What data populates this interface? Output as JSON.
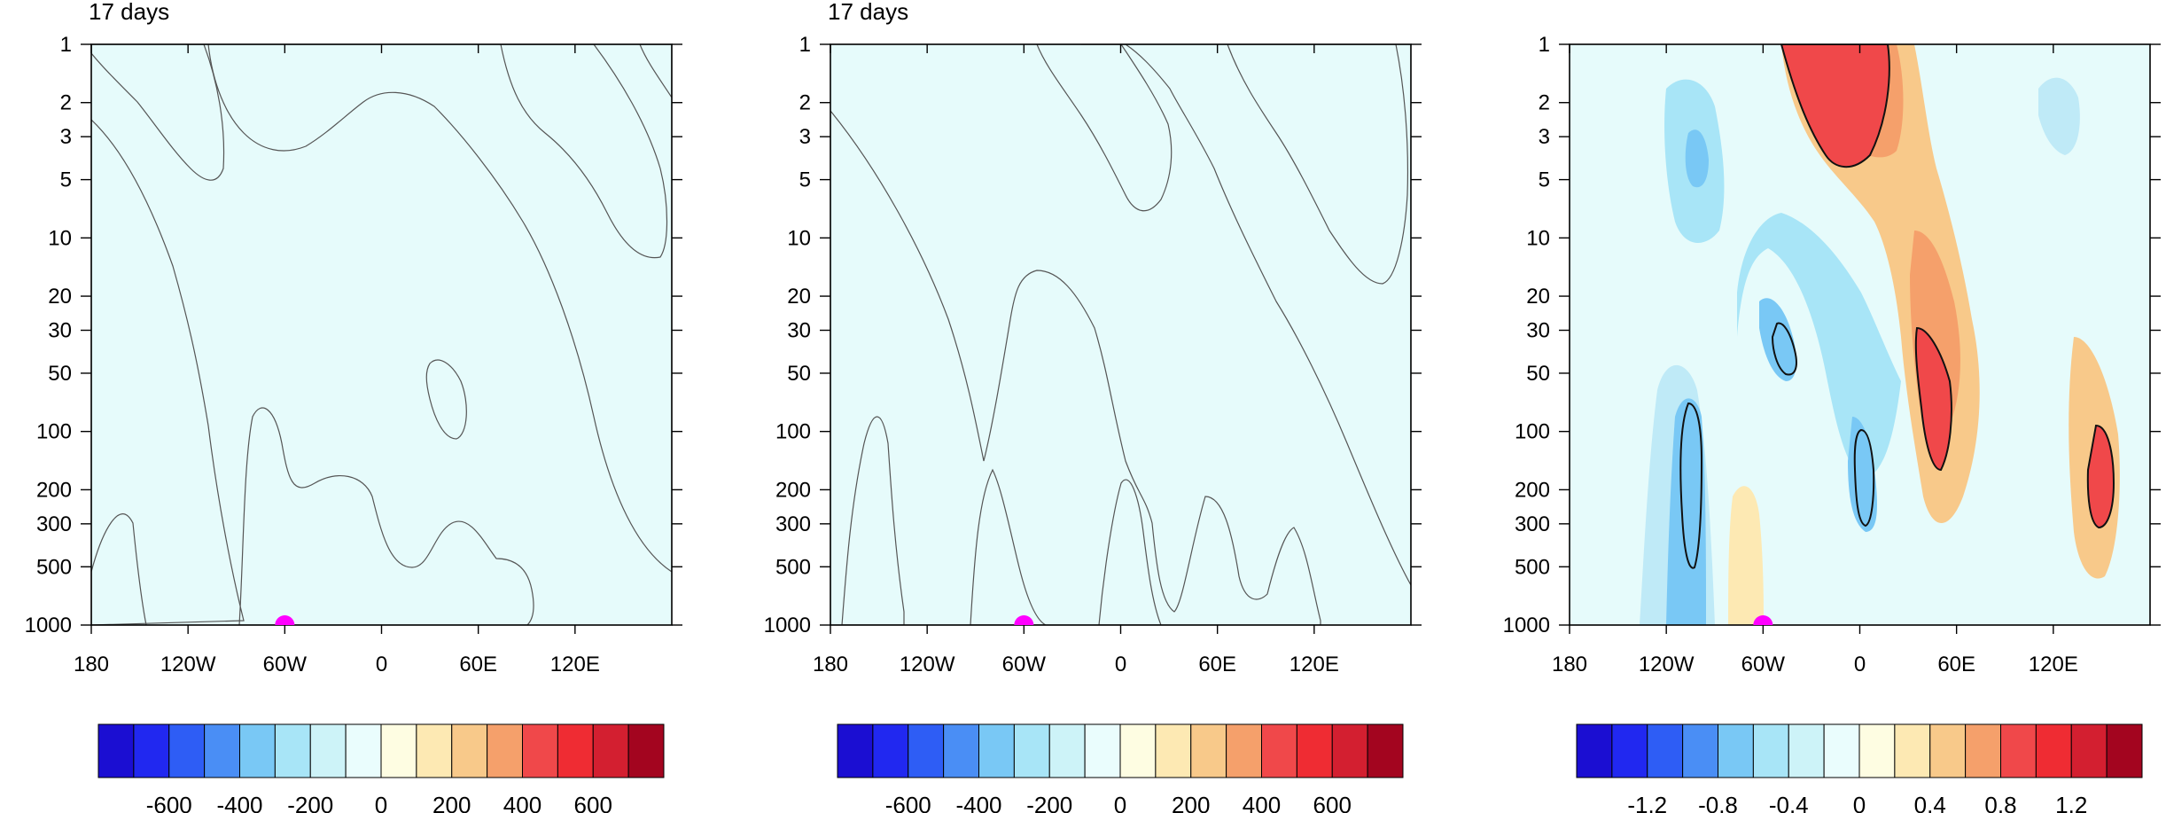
{
  "chart_data": [
    {
      "type": "heatmap",
      "title": "17 days",
      "x_ticks": [
        "180",
        "120W",
        "60W",
        "0",
        "60E",
        "120E"
      ],
      "y_ticks": [
        "1",
        "2",
        "3",
        "5",
        "10",
        "20",
        "30",
        "50",
        "100",
        "200",
        "300",
        "500",
        "1000"
      ],
      "y_scale": "log",
      "y_range": [
        1000,
        1
      ],
      "x_range": [
        "180",
        "180"
      ],
      "marker": {
        "x": "60W",
        "y": 1000,
        "color": "#ff00ff"
      },
      "colorbar": {
        "labels": [
          "-600",
          "-400",
          "-200",
          "0",
          "200",
          "400",
          "600"
        ],
        "colors": [
          "#1b0ed2",
          "#2128f0",
          "#2e5df5",
          "#4a8ef5",
          "#79c8f5",
          "#a8e5f7",
          "#cdf3f8",
          "#eafdfd",
          "#fefde2",
          "#fde9b3",
          "#f8c98a",
          "#f5a06b",
          "#f0484a",
          "#ef2c33",
          "#d31f30",
          "#a3051f"
        ]
      }
    },
    {
      "type": "heatmap",
      "title": "17 days",
      "x_ticks": [
        "180",
        "120W",
        "60W",
        "0",
        "60E",
        "120E"
      ],
      "y_ticks": [
        "1",
        "2",
        "3",
        "5",
        "10",
        "20",
        "30",
        "50",
        "100",
        "200",
        "300",
        "500",
        "1000"
      ],
      "y_scale": "log",
      "y_range": [
        1000,
        1
      ],
      "x_range": [
        "180",
        "180"
      ],
      "marker": {
        "x": "60W",
        "y": 1000,
        "color": "#ff00ff"
      },
      "colorbar": {
        "labels": [
          "-600",
          "-400",
          "-200",
          "0",
          "200",
          "400",
          "600"
        ],
        "colors": [
          "#1b0ed2",
          "#2128f0",
          "#2e5df5",
          "#4a8ef5",
          "#79c8f5",
          "#a8e5f7",
          "#cdf3f8",
          "#eafdfd",
          "#fefde2",
          "#fde9b3",
          "#f8c98a",
          "#f5a06b",
          "#f0484a",
          "#ef2c33",
          "#d31f30",
          "#a3051f"
        ]
      }
    },
    {
      "type": "heatmap",
      "title": "",
      "x_ticks": [
        "180",
        "120W",
        "60W",
        "0",
        "60E",
        "120E"
      ],
      "y_ticks": [
        "1",
        "2",
        "3",
        "5",
        "10",
        "20",
        "30",
        "50",
        "100",
        "200",
        "300",
        "500",
        "1000"
      ],
      "y_scale": "log",
      "y_range": [
        1000,
        1
      ],
      "x_range": [
        "180",
        "180"
      ],
      "marker": {
        "x": "60W",
        "y": 1000,
        "color": "#ff00ff"
      },
      "hatched_significance": true,
      "colorbar": {
        "labels": [
          "-1.2",
          "-0.8",
          "-0.4",
          "0",
          "0.4",
          "0.8",
          "1.2"
        ],
        "colors": [
          "#1b0ed2",
          "#2128f0",
          "#2e5df5",
          "#4a8ef5",
          "#79c8f5",
          "#a8e5f7",
          "#cdf3f8",
          "#eafdfd",
          "#fefde2",
          "#fde9b3",
          "#f8c98a",
          "#f5a06b",
          "#f0484a",
          "#ef2c33",
          "#d31f30",
          "#a3051f"
        ]
      }
    }
  ]
}
